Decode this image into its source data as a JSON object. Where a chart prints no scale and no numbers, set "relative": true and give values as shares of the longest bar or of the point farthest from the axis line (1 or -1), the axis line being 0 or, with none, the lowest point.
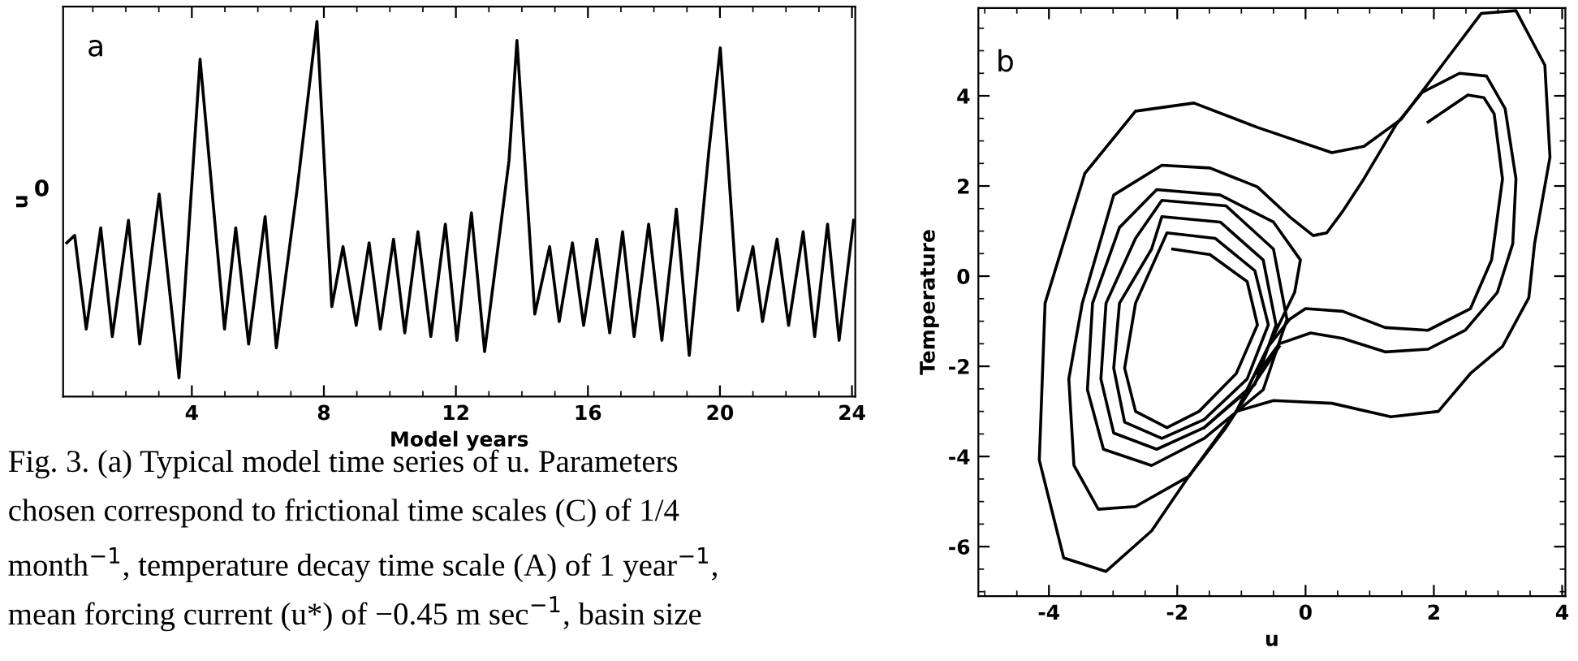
{
  "chart_data": [
    {
      "type": "line",
      "title": "a",
      "xlabel": "Model years",
      "ylabel": "u",
      "relative": true,
      "xlim": [
        0.1,
        24.1
      ],
      "xticks": [
        4,
        8,
        12,
        16,
        20,
        24
      ],
      "grid": false,
      "annotations": [
        "0",
        "Fig. 3. (a) Typical model time series of u. Parameters",
        "chosen correspond to frictional time scales (C) of 1/4",
        "month$^{−1}$, temperature decay time scale (A) of 1 year$^{−1}$,",
        "mean forcing current (u*) of −0.45 m sec$^{−1}$, basin size"
      ],
      "series": [
        {
          "color": "#000000",
          "x": [
            0.21,
            0.45,
            0.8,
            1.24,
            1.59,
            2.08,
            2.42,
            3.01,
            3.61,
            4.25,
            4.99,
            5.33,
            5.72,
            6.22,
            6.56,
            7.2,
            7.79,
            8.24,
            8.58,
            8.98,
            9.37,
            9.71,
            10.11,
            10.45,
            10.85,
            11.24,
            11.68,
            12.03,
            12.47,
            12.87,
            13.61,
            13.85,
            14.39,
            14.84,
            15.13,
            15.53,
            15.87,
            16.27,
            16.66,
            17.05,
            17.4,
            17.84,
            18.24,
            18.68,
            19.07,
            19.67,
            20.01,
            20.55,
            21.0,
            21.29,
            21.73,
            22.08,
            22.52,
            22.87,
            23.26,
            23.61,
            24.05
          ],
          "values": [
            0.41,
            0.43,
            0.18,
            0.45,
            0.16,
            0.47,
            0.14,
            0.54,
            0.05,
            0.9,
            0.18,
            0.45,
            0.14,
            0.48,
            0.13,
            0.56,
            1.0,
            0.24,
            0.4,
            0.19,
            0.41,
            0.18,
            0.42,
            0.17,
            0.44,
            0.16,
            0.46,
            0.15,
            0.49,
            0.12,
            0.63,
            0.95,
            0.22,
            0.4,
            0.2,
            0.41,
            0.19,
            0.42,
            0.17,
            0.44,
            0.16,
            0.46,
            0.15,
            0.5,
            0.11,
            0.66,
            0.93,
            0.23,
            0.4,
            0.2,
            0.42,
            0.19,
            0.44,
            0.16,
            0.46,
            0.15,
            0.47
          ]
        }
      ]
    },
    {
      "type": "line",
      "title": "b",
      "xlabel": "u",
      "ylabel": "Temperature",
      "xlim": [
        -5.1,
        4.05
      ],
      "ylim": [
        -7.1,
        5.95
      ],
      "xticks": [
        -4,
        -2,
        0,
        2,
        4
      ],
      "yticks": [
        -6,
        -4,
        -2,
        0,
        2,
        4
      ],
      "grid": false,
      "series": [
        {
          "color": "#000000",
          "x": [
            -1.08,
            -0.5,
            0.41,
            1.33,
            2.07,
            2.57,
            3.07,
            3.48,
            3.57,
            3.81,
            3.73,
            3.28,
            2.74,
            1.49,
            0.91,
            0.41,
            -0.75,
            -1.74,
            -2.65,
            -3.44,
            -4.06,
            -4.15,
            -3.77,
            -3.11,
            -2.4,
            -1.82,
            -1.24,
            -0.75,
            -0.41
          ],
          "values": [
            -3.0,
            -2.76,
            -2.82,
            -3.12,
            -3.0,
            -2.16,
            -1.56,
            -0.48,
            0.72,
            2.64,
            4.68,
            5.89,
            5.83,
            3.48,
            2.88,
            2.74,
            3.3,
            3.84,
            3.66,
            2.28,
            -0.6,
            -4.08,
            -6.25,
            -6.55,
            -5.65,
            -4.44,
            -3.36,
            -2.28,
            -1.56
          ]
        },
        {
          "color": "#000000",
          "x": [
            -2.07,
            -1.49,
            -0.91,
            -0.75,
            -1.08,
            -1.66,
            -2.16,
            -2.65,
            -2.82,
            -2.65,
            -2.16,
            -1.41,
            -0.79,
            -0.58,
            -0.91,
            -1.58,
            -2.24,
            -2.82,
            -2.99,
            -2.9,
            -2.4,
            -2.24,
            -1.33,
            -0.66,
            -0.46,
            -0.79,
            -1.58,
            -2.32,
            -2.99,
            -3.19,
            -3.11,
            -2.65,
            -2.24,
            -1.24,
            -0.5,
            -0.29,
            -0.66,
            -1.58,
            -2.4,
            -3.15,
            -3.4,
            -3.32,
            -2.9,
            -2.32,
            -1.33,
            -0.5,
            -0.08,
            -0.17,
            -0.58,
            -1.08,
            -1.82,
            -2.65,
            -3.23,
            -3.61,
            -3.69,
            -3.48,
            -2.99,
            -2.24,
            -1.49,
            -0.75,
            -0.25,
            0.12,
            0.33,
            0.58,
            0.91,
            1.41,
            1.82,
            2.4,
            2.82,
            3.11,
            3.28,
            3.23,
            2.99,
            2.49,
            1.91,
            1.24,
            0.58,
            0.08,
            -0.41,
            -0.75
          ],
          "values": [
            0.6,
            0.48,
            -0.12,
            -1.08,
            -2.16,
            -3.0,
            -3.36,
            -3.0,
            -2.04,
            -0.6,
            0.96,
            0.84,
            0.12,
            -1.08,
            -2.28,
            -3.18,
            -3.6,
            -3.24,
            -2.04,
            -0.6,
            0.6,
            1.32,
            1.2,
            0.36,
            -1.08,
            -2.4,
            -3.36,
            -3.84,
            -3.48,
            -2.28,
            -0.6,
            0.84,
            1.68,
            1.56,
            0.6,
            -0.96,
            -2.52,
            -3.6,
            -4.2,
            -3.84,
            -2.52,
            -0.6,
            1.08,
            1.92,
            1.8,
            1.2,
            0.36,
            -0.36,
            -1.56,
            -3.0,
            -4.44,
            -5.11,
            -5.17,
            -4.2,
            -2.28,
            -0.6,
            1.8,
            2.46,
            2.4,
            1.98,
            1.32,
            0.9,
            0.96,
            1.44,
            2.16,
            3.36,
            4.08,
            4.5,
            4.44,
            3.72,
            2.16,
            0.72,
            -0.36,
            -1.2,
            -1.62,
            -1.68,
            -1.38,
            -1.26,
            -1.5,
            -2.16
          ]
        },
        {
          "color": "#000000",
          "x": [
            -1.58,
            -0.91,
            -0.58,
            -0.25,
            0.0,
            0.58,
            1.24,
            1.91,
            2.57,
            2.9,
            3.07,
            2.94,
            2.78,
            2.53,
            1.91
          ],
          "values": [
            -3.36,
            -2.52,
            -1.56,
            -0.96,
            -0.72,
            -0.78,
            -1.14,
            -1.2,
            -0.72,
            0.36,
            2.16,
            3.6,
            3.96,
            4.02,
            3.42
          ]
        }
      ]
    }
  ]
}
